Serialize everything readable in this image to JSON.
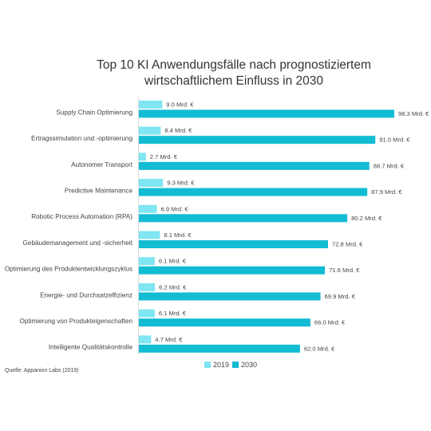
{
  "chart_data": {
    "type": "bar",
    "orientation": "horizontal",
    "title_line1": "Top 10 KI Anwendungsfälle nach prognostiziertem",
    "title_line2": "wirtschaftlichem Einfluss in 2030",
    "categories": [
      "Supply Chain Optimierung",
      "Ertragssimulation und -optimierung",
      "Autonomer Transport",
      "Predictive Maintenance",
      "Robotic Process Automation (RPA)",
      "Gebäudemanagement und -sicherheit",
      "Optimierung des Produktentwicklungszyklus",
      "Energie- und Durchsatzeffizienz",
      "Optimierung von Produkteigenschaften",
      "Intelligente Qualitätskontrolle"
    ],
    "series": [
      {
        "name": "2019",
        "color": "#7fe6f2",
        "values": [
          9.0,
          8.4,
          2.7,
          9.3,
          6.9,
          8.1,
          6.1,
          6.2,
          6.1,
          4.7
        ],
        "labels": [
          "9.0 Mrd. €",
          "8.4 Mrd. €",
          "2.7 Mrd. €",
          "9.3 Mrd. €",
          "6.9 Mrd. €",
          "8.1 Mrd. €",
          "6.1 Mrd. €",
          "6.2 Mrd. €",
          "6.1 Mrd. €",
          "4.7 Mrd. €"
        ]
      },
      {
        "name": "2030",
        "color": "#12bcd3",
        "values": [
          98.3,
          91.0,
          88.7,
          87.9,
          80.2,
          72.8,
          71.6,
          69.9,
          66.0,
          62.0
        ],
        "labels": [
          "98.3 Mrd. €",
          "91.0 Mrd. €",
          "88.7 Mrd. €",
          "87.9 Mrd. €",
          "80.2 Mrd. €",
          "72.8 Mrd. €",
          "71.6 Mrd. €",
          "69.9 Mrd. €",
          "66.0 Mrd. €",
          "62.0 Mrd. €"
        ]
      }
    ],
    "xlim": [
      0,
      100
    ],
    "grid": false,
    "legend_position": "bottom-center",
    "source": "Quelle: Appanion Labs (2019)"
  }
}
